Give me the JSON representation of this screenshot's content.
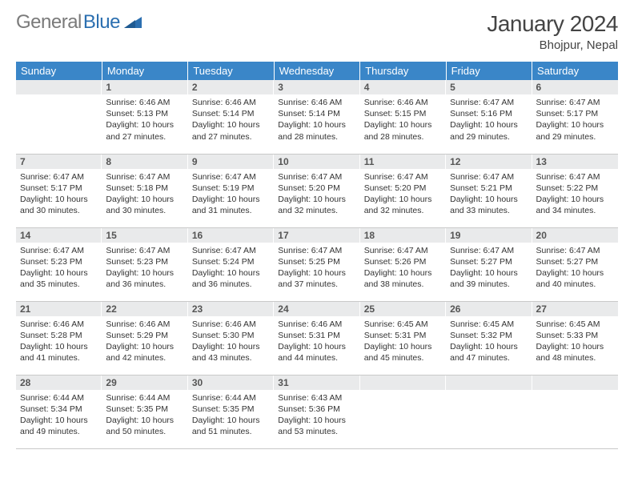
{
  "brand": {
    "part1": "General",
    "part2": "Blue"
  },
  "title": "January 2024",
  "location": "Bhojpur, Nepal",
  "weekdays": [
    "Sunday",
    "Monday",
    "Tuesday",
    "Wednesday",
    "Thursday",
    "Friday",
    "Saturday"
  ],
  "colors": {
    "header_bg": "#3a86c8",
    "header_fg": "#ffffff",
    "daynum_bg": "#e9eaeb",
    "border": "#c9c9c9",
    "logo_gray": "#7a7a7a",
    "logo_blue": "#2b6fb0"
  },
  "start_weekday": 1,
  "days": [
    {
      "n": 1,
      "sunrise": "6:46 AM",
      "sunset": "5:13 PM",
      "daylight": "10 hours and 27 minutes."
    },
    {
      "n": 2,
      "sunrise": "6:46 AM",
      "sunset": "5:14 PM",
      "daylight": "10 hours and 27 minutes."
    },
    {
      "n": 3,
      "sunrise": "6:46 AM",
      "sunset": "5:14 PM",
      "daylight": "10 hours and 28 minutes."
    },
    {
      "n": 4,
      "sunrise": "6:46 AM",
      "sunset": "5:15 PM",
      "daylight": "10 hours and 28 minutes."
    },
    {
      "n": 5,
      "sunrise": "6:47 AM",
      "sunset": "5:16 PM",
      "daylight": "10 hours and 29 minutes."
    },
    {
      "n": 6,
      "sunrise": "6:47 AM",
      "sunset": "5:17 PM",
      "daylight": "10 hours and 29 minutes."
    },
    {
      "n": 7,
      "sunrise": "6:47 AM",
      "sunset": "5:17 PM",
      "daylight": "10 hours and 30 minutes."
    },
    {
      "n": 8,
      "sunrise": "6:47 AM",
      "sunset": "5:18 PM",
      "daylight": "10 hours and 30 minutes."
    },
    {
      "n": 9,
      "sunrise": "6:47 AM",
      "sunset": "5:19 PM",
      "daylight": "10 hours and 31 minutes."
    },
    {
      "n": 10,
      "sunrise": "6:47 AM",
      "sunset": "5:20 PM",
      "daylight": "10 hours and 32 minutes."
    },
    {
      "n": 11,
      "sunrise": "6:47 AM",
      "sunset": "5:20 PM",
      "daylight": "10 hours and 32 minutes."
    },
    {
      "n": 12,
      "sunrise": "6:47 AM",
      "sunset": "5:21 PM",
      "daylight": "10 hours and 33 minutes."
    },
    {
      "n": 13,
      "sunrise": "6:47 AM",
      "sunset": "5:22 PM",
      "daylight": "10 hours and 34 minutes."
    },
    {
      "n": 14,
      "sunrise": "6:47 AM",
      "sunset": "5:23 PM",
      "daylight": "10 hours and 35 minutes."
    },
    {
      "n": 15,
      "sunrise": "6:47 AM",
      "sunset": "5:23 PM",
      "daylight": "10 hours and 36 minutes."
    },
    {
      "n": 16,
      "sunrise": "6:47 AM",
      "sunset": "5:24 PM",
      "daylight": "10 hours and 36 minutes."
    },
    {
      "n": 17,
      "sunrise": "6:47 AM",
      "sunset": "5:25 PM",
      "daylight": "10 hours and 37 minutes."
    },
    {
      "n": 18,
      "sunrise": "6:47 AM",
      "sunset": "5:26 PM",
      "daylight": "10 hours and 38 minutes."
    },
    {
      "n": 19,
      "sunrise": "6:47 AM",
      "sunset": "5:27 PM",
      "daylight": "10 hours and 39 minutes."
    },
    {
      "n": 20,
      "sunrise": "6:47 AM",
      "sunset": "5:27 PM",
      "daylight": "10 hours and 40 minutes."
    },
    {
      "n": 21,
      "sunrise": "6:46 AM",
      "sunset": "5:28 PM",
      "daylight": "10 hours and 41 minutes."
    },
    {
      "n": 22,
      "sunrise": "6:46 AM",
      "sunset": "5:29 PM",
      "daylight": "10 hours and 42 minutes."
    },
    {
      "n": 23,
      "sunrise": "6:46 AM",
      "sunset": "5:30 PM",
      "daylight": "10 hours and 43 minutes."
    },
    {
      "n": 24,
      "sunrise": "6:46 AM",
      "sunset": "5:31 PM",
      "daylight": "10 hours and 44 minutes."
    },
    {
      "n": 25,
      "sunrise": "6:45 AM",
      "sunset": "5:31 PM",
      "daylight": "10 hours and 45 minutes."
    },
    {
      "n": 26,
      "sunrise": "6:45 AM",
      "sunset": "5:32 PM",
      "daylight": "10 hours and 47 minutes."
    },
    {
      "n": 27,
      "sunrise": "6:45 AM",
      "sunset": "5:33 PM",
      "daylight": "10 hours and 48 minutes."
    },
    {
      "n": 28,
      "sunrise": "6:44 AM",
      "sunset": "5:34 PM",
      "daylight": "10 hours and 49 minutes."
    },
    {
      "n": 29,
      "sunrise": "6:44 AM",
      "sunset": "5:35 PM",
      "daylight": "10 hours and 50 minutes."
    },
    {
      "n": 30,
      "sunrise": "6:44 AM",
      "sunset": "5:35 PM",
      "daylight": "10 hours and 51 minutes."
    },
    {
      "n": 31,
      "sunrise": "6:43 AM",
      "sunset": "5:36 PM",
      "daylight": "10 hours and 53 minutes."
    }
  ],
  "labels": {
    "sunrise": "Sunrise:",
    "sunset": "Sunset:",
    "daylight": "Daylight:"
  }
}
